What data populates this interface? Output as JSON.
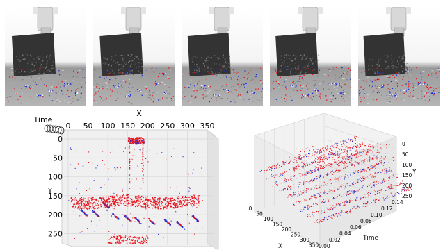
{
  "panels": {
    "left": {
      "title_axis_x": "X",
      "axis_time": "Time",
      "axis_y": "Y",
      "x_ticks": [
        "0",
        "50",
        "100",
        "150",
        "200",
        "250",
        "300",
        "350"
      ],
      "y_ticks": [
        "0",
        "50",
        "100",
        "150",
        "200",
        "250"
      ]
    },
    "right": {
      "axis_x": "X",
      "axis_time": "Time",
      "axis_y": "Y",
      "x_ticks": [
        "0",
        "50",
        "100",
        "150",
        "200",
        "250",
        "300",
        "350"
      ],
      "time_ticks": [
        "0.00",
        "0.02",
        "0.04",
        "0.06",
        "0.08",
        "0.10",
        "0.12",
        "0.14"
      ],
      "y_ticks": [
        "0",
        "50",
        "100",
        "150",
        "200",
        "250"
      ]
    }
  },
  "chart_data": {
    "type": "scatter",
    "series": [
      {
        "name": "",
        "color": "#e8141e"
      },
      {
        "name": "",
        "color": "#1f2cd6"
      }
    ],
    "xlim": [
      0,
      350
    ],
    "ylim": [
      0,
      250
    ],
    "time_range": [
      0.0,
      0.14
    ]
  },
  "frame_count": 5
}
